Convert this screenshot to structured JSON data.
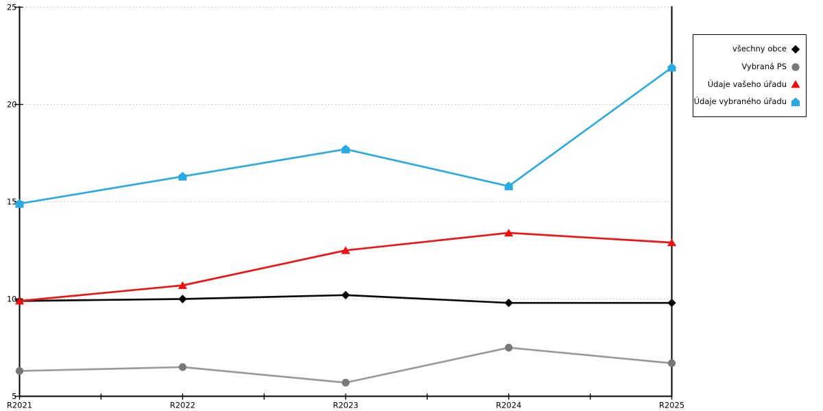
{
  "chart_data": {
    "type": "line",
    "title": "",
    "xlabel": "",
    "ylabel": "",
    "categories": [
      "R2021",
      "R2022",
      "R2023",
      "R2024",
      "R2025"
    ],
    "series": [
      {
        "name": "všechny obce",
        "marker": "diamond",
        "color": "#000000",
        "line_color": "#0a0a0a",
        "values": [
          9.9,
          10.0,
          10.2,
          9.8,
          9.8
        ]
      },
      {
        "name": "Vybraná PS",
        "marker": "circle",
        "color": "#787878",
        "line_color": "#9a9a9a",
        "values": [
          6.3,
          6.5,
          5.7,
          7.5,
          6.7
        ]
      },
      {
        "name": "Údaje vašeho úřadu",
        "marker": "triangle-up",
        "color": "#f10e0e",
        "line_color": "#f21212",
        "values": [
          9.9,
          10.7,
          12.5,
          13.4,
          12.9
        ]
      },
      {
        "name": "Údaje vybraného úřadu",
        "marker": "pentagon-up",
        "color": "#29abe2",
        "line_color": "#29abe2",
        "values": [
          14.9,
          16.3,
          17.7,
          15.8,
          21.9
        ]
      }
    ],
    "ylim": [
      5,
      25
    ],
    "yticks": [
      5,
      10,
      15,
      20,
      25
    ],
    "x_minor_ticks": true,
    "grid": "horizontal-dotted",
    "grid_color": "#c0c0c0",
    "axis_color": "#000000",
    "text_color": "#000000",
    "legend_position": "right-outside"
  }
}
